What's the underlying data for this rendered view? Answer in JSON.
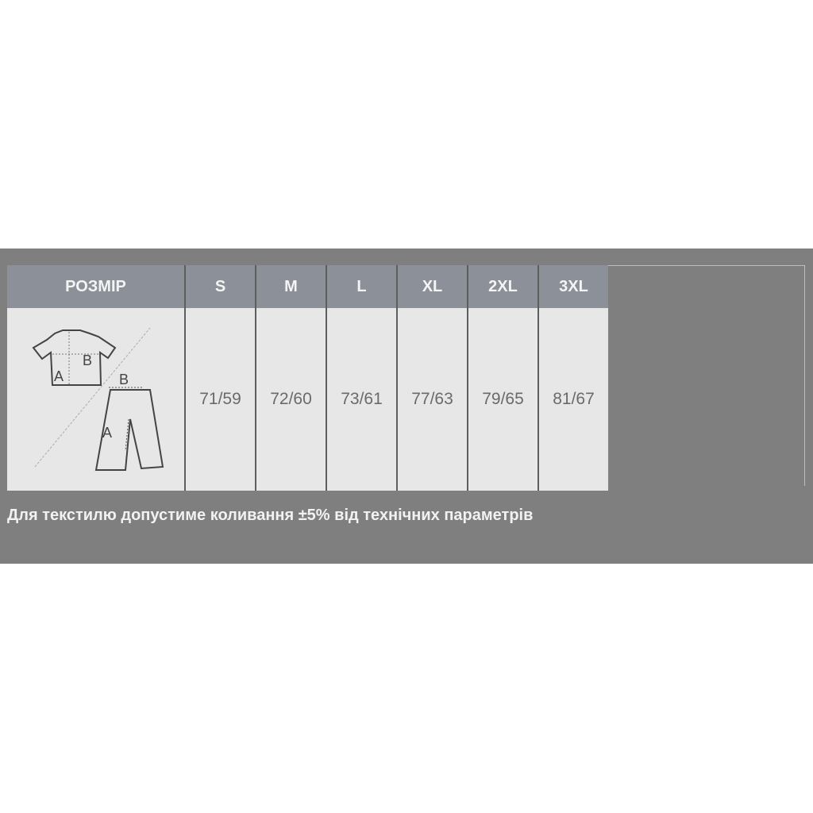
{
  "table": {
    "header_label": "РОЗМІР",
    "sizes": [
      "S",
      "M",
      "L",
      "XL",
      "2XL",
      "3XL"
    ],
    "values": [
      "71/59",
      "72/60",
      "73/61",
      "77/63",
      "79/65",
      "81/67"
    ],
    "diagram": {
      "icon": "shirt-and-pants-measurement-icon",
      "shirt_labels": [
        "A",
        "B"
      ],
      "pants_labels": [
        "A",
        "B"
      ]
    }
  },
  "note": "Для текстилю допустиме коливання ±5% від технічних параметрів",
  "colors": {
    "background": "#7f7f7f",
    "header": "#8b9099",
    "cell": "#e7e7e7"
  }
}
